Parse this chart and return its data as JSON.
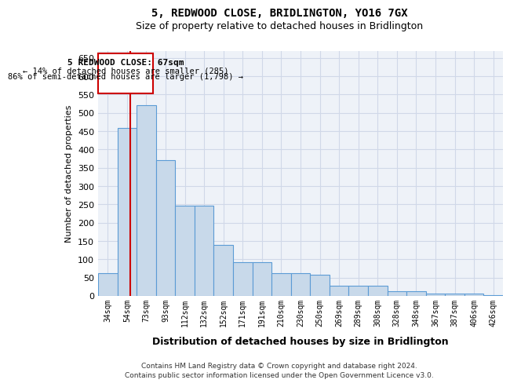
{
  "title": "5, REDWOOD CLOSE, BRIDLINGTON, YO16 7GX",
  "subtitle": "Size of property relative to detached houses in Bridlington",
  "xlabel": "Distribution of detached houses by size in Bridlington",
  "ylabel": "Number of detached properties",
  "categories": [
    "34sqm",
    "54sqm",
    "73sqm",
    "93sqm",
    "112sqm",
    "132sqm",
    "152sqm",
    "171sqm",
    "191sqm",
    "210sqm",
    "230sqm",
    "250sqm",
    "269sqm",
    "289sqm",
    "308sqm",
    "328sqm",
    "348sqm",
    "367sqm",
    "387sqm",
    "406sqm",
    "426sqm"
  ],
  "values": [
    63,
    458,
    520,
    370,
    247,
    247,
    140,
    93,
    93,
    62,
    62,
    57,
    27,
    27,
    27,
    12,
    12,
    7,
    7,
    7,
    3
  ],
  "bar_color": "#c8d9ea",
  "bar_edge_color": "#5b9bd5",
  "bar_edge_width": 0.8,
  "grid_color": "#d0d8e8",
  "background_color": "#eef2f8",
  "annotation_title": "5 REDWOOD CLOSE: 67sqm",
  "annotation_line1": "← 14% of detached houses are smaller (285)",
  "annotation_line2": "86% of semi-detached houses are larger (1,798) →",
  "annotation_box_color": "#ffffff",
  "annotation_border_color": "#cc0000",
  "footer1": "Contains HM Land Registry data © Crown copyright and database right 2024.",
  "footer2": "Contains public sector information licensed under the Open Government Licence v3.0.",
  "ylim": [
    0,
    670
  ],
  "yticks": [
    0,
    50,
    100,
    150,
    200,
    250,
    300,
    350,
    400,
    450,
    500,
    550,
    600,
    650
  ]
}
